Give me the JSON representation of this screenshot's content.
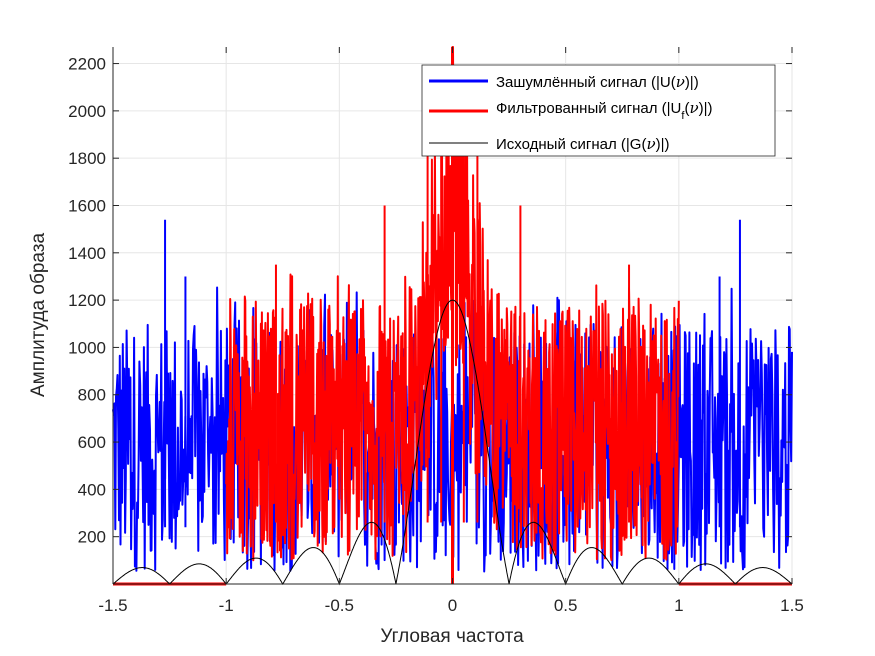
{
  "chart_data": {
    "type": "line",
    "title": "",
    "xlabel": "Угловая частота",
    "ylabel": "Амплитуда образа",
    "xlim": [
      -1.5,
      1.5
    ],
    "ylim": [
      0,
      2270
    ],
    "xticks": [
      -1.5,
      -1,
      -0.5,
      0,
      0.5,
      1,
      1.5
    ],
    "xtick_labels": [
      "-1.5",
      "-1",
      "-0.5",
      "0",
      "0.5",
      "1",
      "1.5"
    ],
    "yticks": [
      200,
      400,
      600,
      800,
      1000,
      1200,
      1400,
      1600,
      1800,
      2000,
      2200
    ],
    "ytick_labels": [
      "200",
      "400",
      "600",
      "800",
      "1000",
      "1200",
      "1400",
      "1600",
      "1800",
      "2000",
      "2200"
    ],
    "grid": true,
    "legend_position": "top-right",
    "legend": [
      {
        "prefix": "Зашумлённый сигнал (|U(",
        "symbol": "ν",
        "suffix": ")|)",
        "sub": ""
      },
      {
        "prefix": "Фильтрованный сигнал (|U",
        "sub": "f",
        "symbol": "ν",
        "suffix": ")|)",
        "mid": "("
      },
      {
        "prefix": "Исходный сигнал (|G(",
        "symbol": "ν",
        "suffix": ")|)",
        "sub": ""
      }
    ],
    "series": [
      {
        "name": "Зашумлённый сигнал (|U(ν)|)",
        "color": "#0000ff",
        "range": [
          -1.5,
          1.5
        ],
        "baseline": 600,
        "noise_min": 50,
        "noise_max": 1100,
        "peaks": [
          {
            "x": -1.27,
            "y": 1540
          },
          {
            "x": -1.18,
            "y": 1300
          },
          {
            "x": 1.27,
            "y": 1540
          },
          {
            "x": 1.18,
            "y": 1300
          }
        ]
      },
      {
        "name": "Фильтрованный сигнал (|Uf(ν)|)",
        "color": "#ff0000",
        "range": [
          -1.0,
          1.0
        ],
        "outside_value": 0,
        "baseline": 650,
        "noise_min": 100,
        "noise_max": 1200,
        "center_peak": {
          "x": 0,
          "y": 2270
        },
        "peaks": [
          {
            "x": -0.11,
            "y": 2000
          },
          {
            "x": 0.11,
            "y": 2000
          },
          {
            "x": -0.05,
            "y": 1900
          },
          {
            "x": 0.05,
            "y": 1900
          },
          {
            "x": -0.3,
            "y": 1600
          },
          {
            "x": 0.3,
            "y": 1600
          },
          {
            "x": -0.78,
            "y": 1350
          },
          {
            "x": 0.78,
            "y": 1350
          }
        ]
      },
      {
        "name": "Исходный сигнал (|G(ν)|)",
        "color": "#000000",
        "function": "sinc",
        "amplitude": 1200,
        "zero_spacing": 0.25,
        "x": [
          -1.5,
          -1.25,
          -1.125,
          -1.0,
          -0.875,
          -0.75,
          -0.625,
          -0.5,
          -0.375,
          -0.25,
          -0.125,
          0,
          0.125,
          0.25,
          0.375,
          0.5,
          0.625,
          0.75,
          0.875,
          1.0,
          1.125,
          1.25,
          1.5
        ],
        "y": [
          0,
          0,
          85,
          0,
          110,
          0,
          154,
          0,
          257,
          0,
          765,
          1200,
          765,
          0,
          257,
          0,
          154,
          0,
          110,
          0,
          85,
          0,
          0
        ]
      }
    ]
  }
}
